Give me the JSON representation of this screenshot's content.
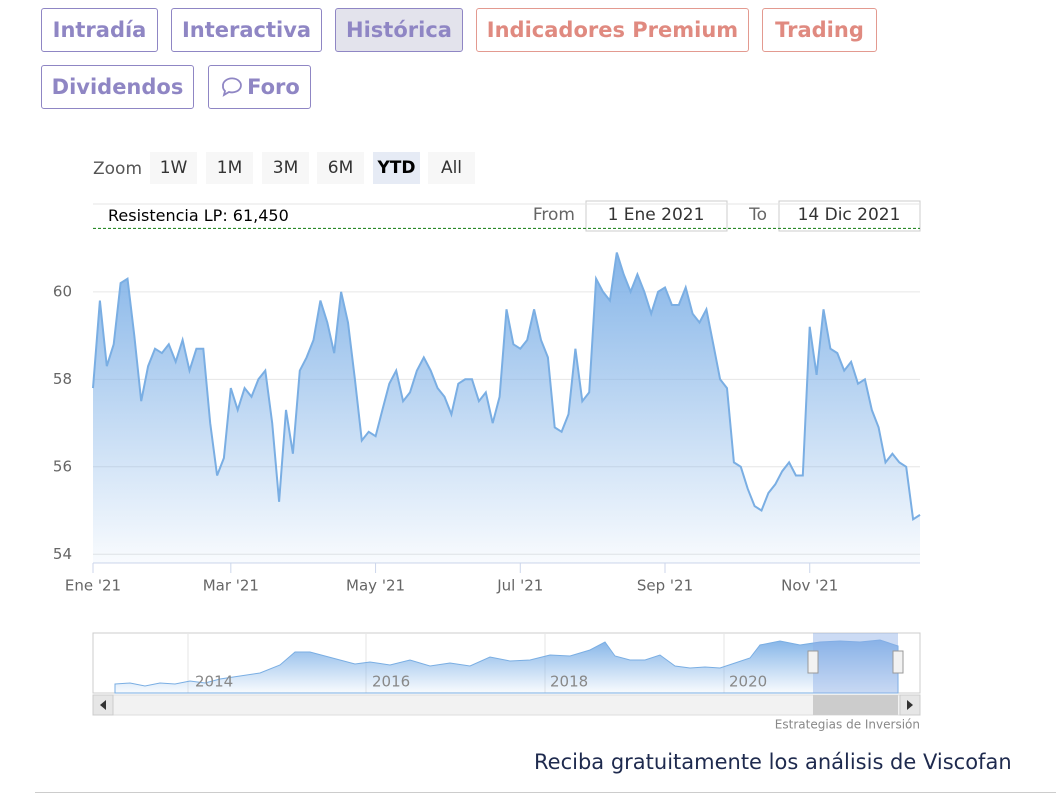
{
  "tabs": [
    "Intradía",
    "Interactiva",
    "Histórica",
    "Indicadores Premium",
    "Trading",
    "Dividendos",
    "Foro"
  ],
  "zoom": {
    "label": "Zoom",
    "buttons": [
      "1W",
      "1M",
      "3M",
      "6M",
      "YTD",
      "All"
    ]
  },
  "range": {
    "from_label": "From",
    "from": "1 Ene 2021",
    "to_label": "To",
    "to": "14 Dic 2021"
  },
  "chart_data": {
    "type": "area",
    "color": "#7aaee3",
    "annotation": {
      "label": "Resistencia LP: 61,450",
      "value": 61.45
    },
    "values": [
      57.8,
      59.8,
      58.3,
      58.8,
      60.2,
      60.3,
      59.0,
      57.5,
      58.3,
      58.7,
      58.6,
      58.8,
      58.4,
      58.9,
      58.2,
      58.7,
      58.7,
      57.0,
      55.8,
      56.2,
      57.8,
      57.3,
      57.8,
      57.6,
      58.0,
      58.2,
      57.0,
      55.2,
      57.3,
      56.3,
      58.2,
      58.5,
      58.9,
      59.8,
      59.3,
      58.6,
      60.0,
      59.3,
      58.0,
      56.6,
      56.8,
      56.7,
      57.3,
      57.9,
      58.2,
      57.5,
      57.7,
      58.2,
      58.5,
      58.2,
      57.8,
      57.6,
      57.2,
      57.9,
      58.0,
      58.0,
      57.5,
      57.7,
      57.0,
      57.6,
      59.6,
      58.8,
      58.7,
      58.9,
      59.6,
      58.9,
      58.5,
      56.9,
      56.8,
      57.2,
      58.7,
      57.5,
      57.7,
      60.3,
      60.0,
      59.8,
      60.9,
      60.4,
      60.0,
      60.4,
      60.0,
      59.5,
      60.0,
      60.1,
      59.7,
      59.7,
      60.1,
      59.5,
      59.3,
      59.6,
      58.8,
      58.0,
      57.8,
      56.1,
      56.0,
      55.5,
      55.1,
      55.0,
      55.4,
      55.6,
      55.9,
      56.1,
      55.8,
      55.8,
      59.2,
      58.1,
      59.6,
      58.7,
      58.6,
      58.2,
      58.4,
      57.9,
      58.0,
      57.3,
      56.9,
      56.1,
      56.3,
      56.1,
      56.0,
      54.8,
      54.9
    ],
    "xlim": [
      0,
      120
    ],
    "xticks": [
      {
        "value": 0,
        "label": "Ene '21"
      },
      {
        "value": 20,
        "label": "Mar '21"
      },
      {
        "value": 41,
        "label": "May '21"
      },
      {
        "value": 62,
        "label": "Jul '21"
      },
      {
        "value": 83,
        "label": "Sep '21"
      },
      {
        "value": 104,
        "label": "Nov '21"
      }
    ],
    "ylim": [
      53.8,
      61.78
    ],
    "yticks": [
      54,
      56,
      58,
      60
    ],
    "grid": true
  },
  "navigator": {
    "labels": [
      "2014",
      "2016",
      "2018",
      "2020"
    ]
  },
  "credits": "Estrategias de Inversión",
  "footer": "Reciba gratuitamente los análisis de Viscofan"
}
